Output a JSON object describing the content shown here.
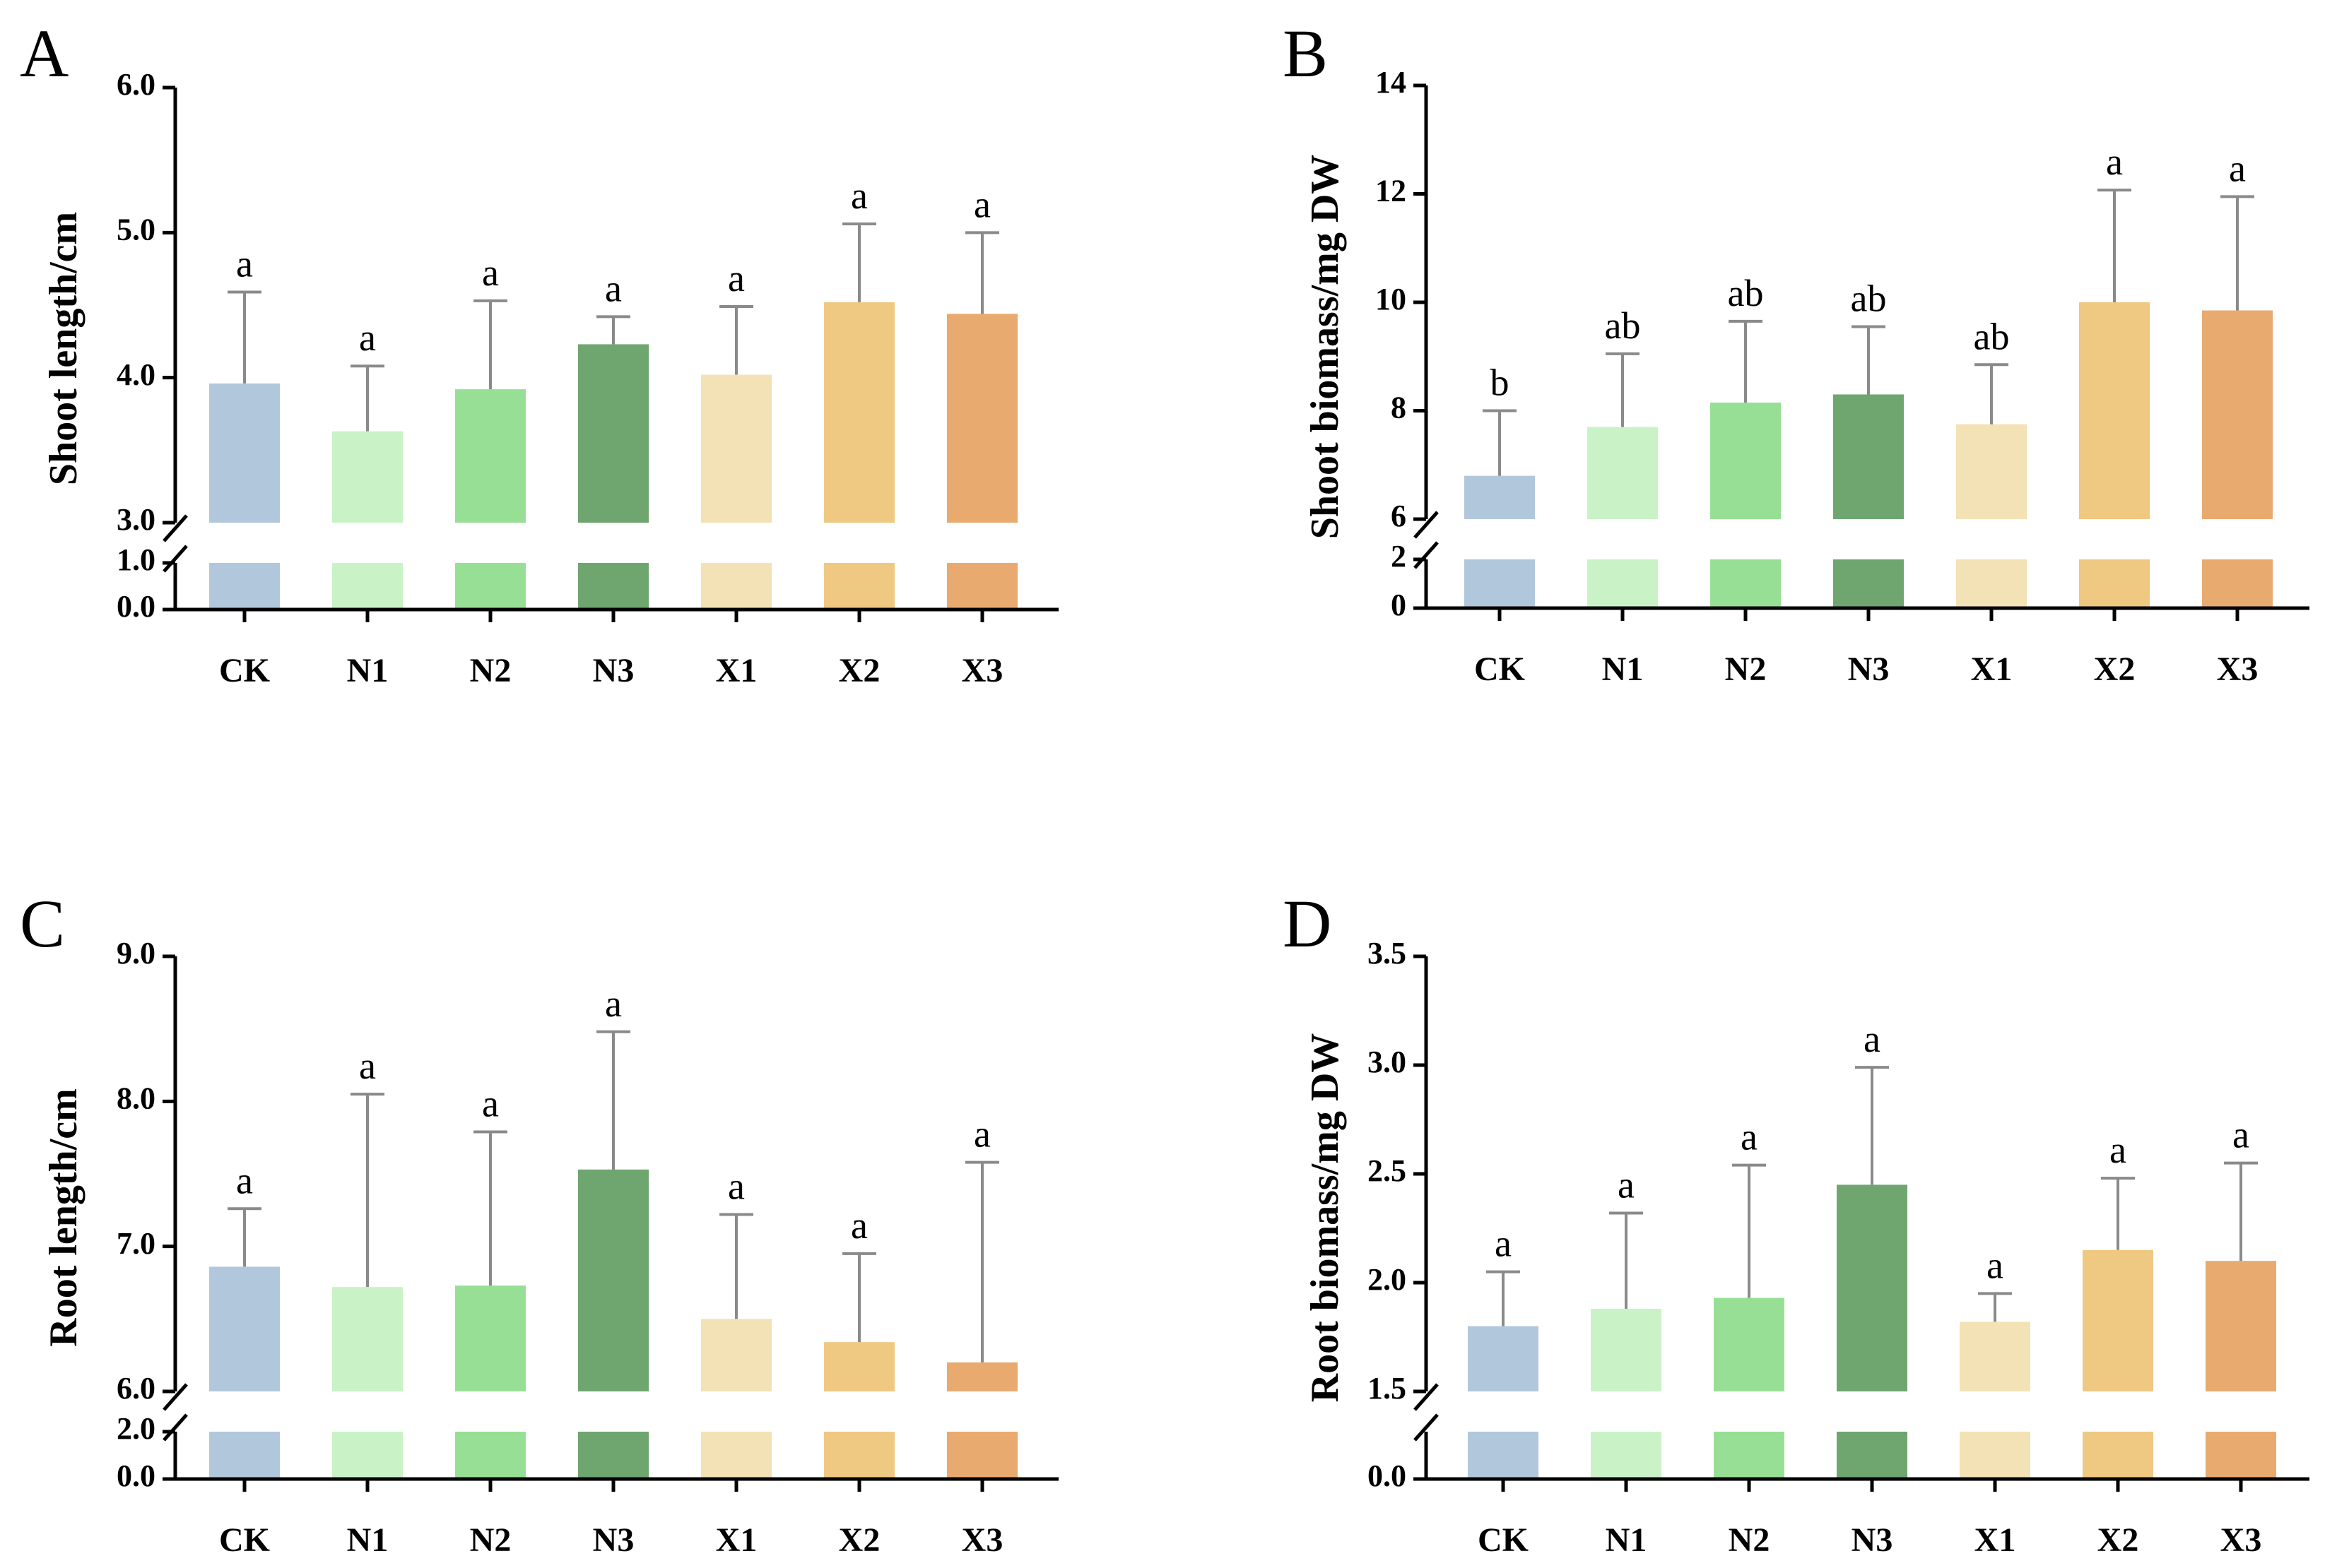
{
  "colors": {
    "CK": "#b1c8dc",
    "N1": "#c9f3c6",
    "N2": "#98df96",
    "N3": "#6fa56f",
    "X1": "#f3e2b5",
    "X2": "#efc882",
    "X3": "#e9aa70",
    "error_bar": "#8a8a8a"
  },
  "chart_data": [
    {
      "type": "bar",
      "panel": "A",
      "ylabel": "Shoot length/cm",
      "categories": [
        "CK",
        "N1",
        "N2",
        "N3",
        "X1",
        "X2",
        "X3"
      ],
      "values": [
        3.96,
        3.63,
        3.92,
        4.23,
        4.02,
        4.52,
        4.44
      ],
      "errors": [
        0.63,
        0.45,
        0.61,
        0.19,
        0.47,
        0.54,
        0.56
      ],
      "significance": [
        "a",
        "a",
        "a",
        "a",
        "a",
        "a",
        "a"
      ],
      "axis_break": {
        "lower": [
          0.0,
          1.0
        ],
        "upper": [
          3.0,
          6.0
        ]
      },
      "yticks_lower": [
        "0.0",
        "1.0"
      ],
      "yticks_upper": [
        "3.0",
        "4.0",
        "5.0",
        "6.0"
      ]
    },
    {
      "type": "bar",
      "panel": "B",
      "ylabel": "Shoot biomass/mg DW",
      "categories": [
        "CK",
        "N1",
        "N2",
        "N3",
        "X1",
        "X2",
        "X3"
      ],
      "values": [
        6.8,
        7.7,
        8.15,
        8.3,
        7.75,
        10.0,
        9.85
      ],
      "errors": [
        1.2,
        1.35,
        1.5,
        1.25,
        1.1,
        2.07,
        2.1
      ],
      "significance": [
        "b",
        "ab",
        "ab",
        "ab",
        "ab",
        "a",
        "a"
      ],
      "axis_break": {
        "lower": [
          0,
          2
        ],
        "upper": [
          6,
          14
        ]
      },
      "yticks_lower": [
        "0",
        "2"
      ],
      "yticks_upper": [
        "6",
        "8",
        "10",
        "12",
        "14"
      ]
    },
    {
      "type": "bar",
      "panel": "C",
      "ylabel": "Root length/cm",
      "categories": [
        "CK",
        "N1",
        "N2",
        "N3",
        "X1",
        "X2",
        "X3"
      ],
      "values": [
        6.86,
        6.72,
        6.73,
        7.53,
        6.5,
        6.34,
        6.2
      ],
      "errors": [
        0.4,
        1.33,
        1.06,
        0.95,
        0.72,
        0.61,
        1.38
      ],
      "significance": [
        "a",
        "a",
        "a",
        "a",
        "a",
        "a",
        "a"
      ],
      "axis_break": {
        "lower": [
          0.0,
          2.0
        ],
        "upper": [
          6.0,
          9.0
        ]
      },
      "yticks_lower": [
        "0.0",
        "2.0"
      ],
      "yticks_upper": [
        "6.0",
        "7.0",
        "8.0",
        "9.0"
      ]
    },
    {
      "type": "bar",
      "panel": "D",
      "ylabel": "Root biomass/mg DW",
      "categories": [
        "CK",
        "N1",
        "N2",
        "N3",
        "X1",
        "X2",
        "X3"
      ],
      "values": [
        1.8,
        1.88,
        1.93,
        2.45,
        1.82,
        2.15,
        2.1
      ],
      "errors": [
        0.25,
        0.44,
        0.61,
        0.54,
        0.13,
        0.33,
        0.45
      ],
      "significance": [
        "a",
        "a",
        "a",
        "a",
        "a",
        "a",
        "a"
      ],
      "axis_break": {
        "lower": [
          0.0,
          0.5
        ],
        "upper": [
          1.5,
          3.5
        ]
      },
      "yticks_lower": [
        "0.0"
      ],
      "yticks_upper": [
        "1.5",
        "2.0",
        "2.5",
        "3.0",
        "3.5"
      ]
    }
  ]
}
